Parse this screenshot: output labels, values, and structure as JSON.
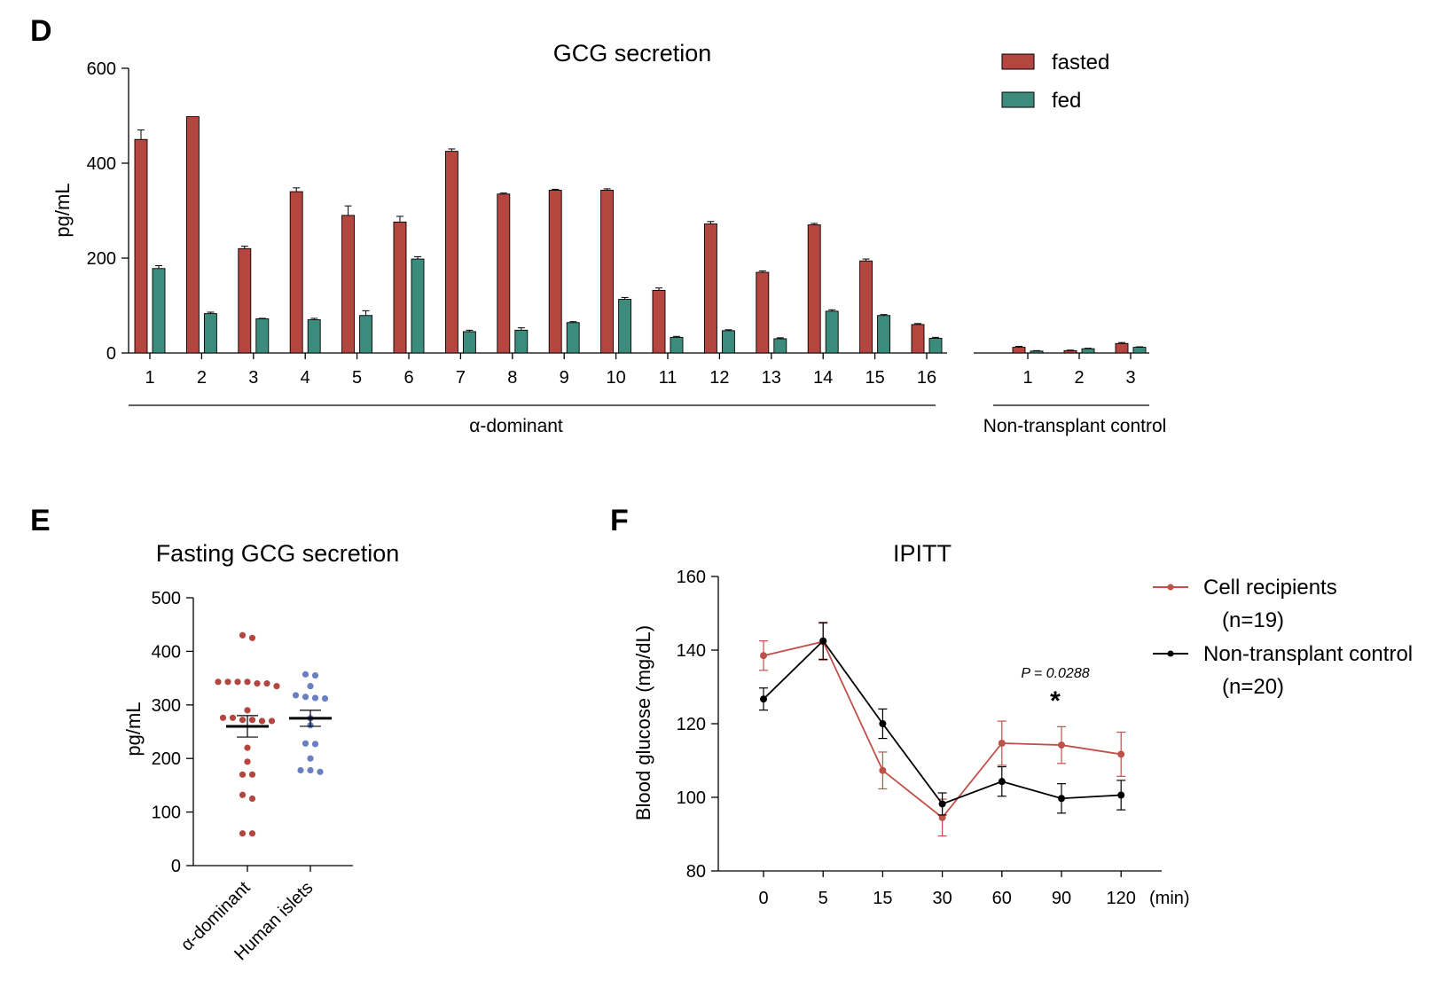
{
  "colors": {
    "fasted": "#b5463f",
    "fed": "#3b8c7c",
    "cell": "#c0504a",
    "control": "#000000",
    "human": "#6a7fc1"
  },
  "chart_data": [
    {
      "panel": "D",
      "type": "bar",
      "title": "GCG secretion",
      "ylabel": "pg/mL",
      "ylim": [
        0,
        600
      ],
      "yticks": [
        0,
        200,
        400,
        600
      ],
      "legend": {
        "placement": "top-right",
        "entries": [
          "fasted",
          "fed"
        ]
      },
      "groups": [
        {
          "label": "α-dominant",
          "categories": [
            "1",
            "2",
            "3",
            "4",
            "5",
            "6",
            "7",
            "8",
            "9",
            "10",
            "11",
            "12",
            "13",
            "14",
            "15",
            "16"
          ]
        },
        {
          "label": "Non-transplant control",
          "categories": [
            "1",
            "2",
            "3"
          ]
        }
      ],
      "series": [
        {
          "name": "fasted",
          "values": [
            450,
            498,
            220,
            340,
            290,
            276,
            425,
            335,
            343,
            343,
            132,
            272,
            170,
            270,
            194,
            60,
            12,
            5,
            20
          ],
          "errors": [
            20,
            0,
            5,
            8,
            20,
            12,
            5,
            2,
            2,
            3,
            5,
            5,
            3,
            3,
            4,
            2,
            2,
            1,
            2
          ]
        },
        {
          "name": "fed",
          "values": [
            178,
            83,
            72,
            70,
            79,
            198,
            45,
            48,
            64,
            113,
            33,
            47,
            30,
            88,
            79,
            31,
            4,
            9,
            12
          ],
          "errors": [
            6,
            3,
            1,
            3,
            10,
            5,
            3,
            5,
            2,
            4,
            2,
            2,
            2,
            3,
            2,
            2,
            1,
            1,
            1
          ]
        }
      ]
    },
    {
      "panel": "E",
      "type": "scatter",
      "title": "Fasting GCG secretion",
      "ylabel": "pg/mL",
      "ylim": [
        0,
        500
      ],
      "yticks": [
        0,
        100,
        200,
        300,
        400,
        500
      ],
      "categories": [
        "α-dominant",
        "Human islets"
      ],
      "groups": [
        {
          "name": "α-dominant",
          "mean": 260,
          "sem": 20,
          "points": [
            430,
            425,
            343,
            343,
            343,
            343,
            340,
            340,
            335,
            290,
            276,
            276,
            272,
            272,
            270,
            270,
            220,
            194,
            170,
            170,
            132,
            125,
            60,
            60
          ]
        },
        {
          "name": "Human islets",
          "mean": 275,
          "sem": 15,
          "points": [
            357,
            355,
            335,
            318,
            315,
            313,
            312,
            275,
            262,
            228,
            227,
            200,
            178,
            178,
            175
          ]
        }
      ]
    },
    {
      "panel": "F",
      "type": "line",
      "title": "IPITT",
      "ylabel": "Blood glucose (mg/dL)",
      "xlabel": "(min)",
      "ylim": [
        80,
        160
      ],
      "yticks": [
        80,
        100,
        120,
        140,
        160
      ],
      "categories": [
        "0",
        "5",
        "15",
        "30",
        "60",
        "90",
        "120"
      ],
      "series": [
        {
          "name": "Cell recipients",
          "sub": "(n=19)",
          "values": [
            138.5,
            142.3,
            107.3,
            94.5,
            114.7,
            114.2,
            111.7
          ],
          "errors": [
            4,
            5,
            5,
            5,
            6,
            5,
            6
          ]
        },
        {
          "name": "Non-transplant control",
          "sub": "(n=20)",
          "values": [
            126.7,
            142.5,
            120.0,
            98.2,
            104.3,
            99.7,
            100.6
          ],
          "errors": [
            3,
            5,
            4,
            3,
            4,
            4,
            4
          ]
        }
      ],
      "annotation": {
        "text": "P = 0.0288",
        "star": "*",
        "at": "90"
      }
    }
  ],
  "panels": {
    "d": "D",
    "e": "E",
    "f": "F"
  }
}
